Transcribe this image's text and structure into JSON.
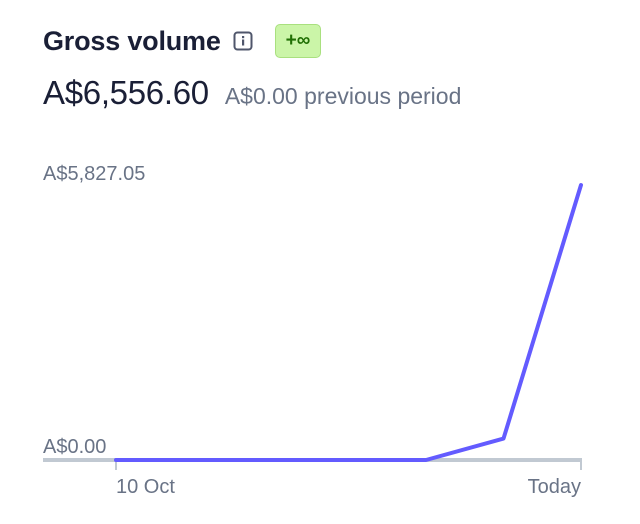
{
  "header": {
    "title": "Gross volume",
    "info_icon": "info-icon",
    "badge": "+∞"
  },
  "summary": {
    "current": "A$6,556.60",
    "previous": "A$0.00 previous period"
  },
  "colors": {
    "line": "#635bff",
    "baseline": "#c1c9d2",
    "badge_bg": "#cbf5a8",
    "badge_text": "#217005"
  },
  "chart_data": {
    "type": "line",
    "x_labels": [
      "10 Oct",
      "Today"
    ],
    "y_labels": [
      "A$5,827.05",
      "A$0.00"
    ],
    "ylim": [
      0,
      5827.05
    ],
    "series": [
      {
        "values": [
          0,
          0,
          0,
          0,
          0,
          454,
          5827.05
        ]
      }
    ]
  }
}
